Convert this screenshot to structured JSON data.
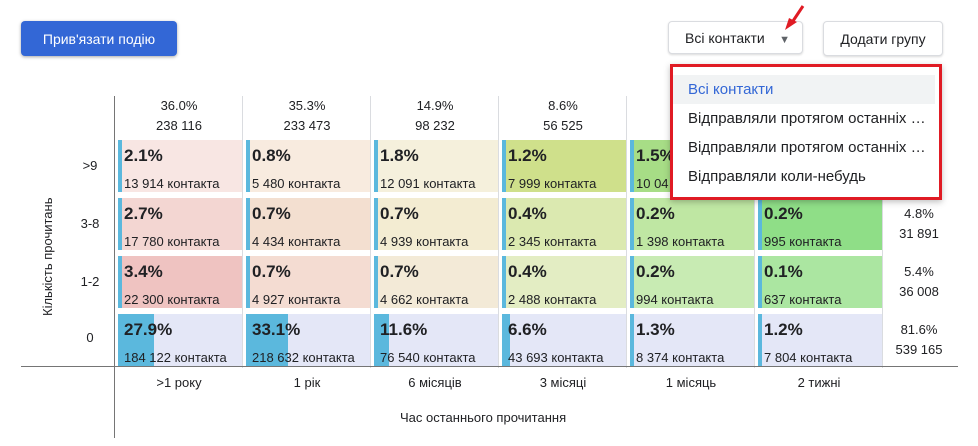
{
  "toolbar": {
    "bind_event_label": "Прив'язати подію",
    "contacts_dropdown_label": "Всі контакти",
    "add_group_label": "Додати групу"
  },
  "dropdown_menu": {
    "items": [
      "Всі контакти",
      "Відправляли протягом останніх …",
      "Відправляли протягом останніх …",
      "Відправляли коли-небудь"
    ],
    "selected_index": 0
  },
  "grid": {
    "y_axis_title": "Кількість прочитань",
    "x_axis_title": "Час останнього прочитання",
    "rows": [
      ">9",
      "3-8",
      "1-2",
      "0"
    ],
    "columns": [
      ">1 року",
      "1 рік",
      "6 місяців",
      "3 місяці",
      "1 місяць",
      "2 тижні"
    ],
    "column_totals": [
      {
        "pct": "36.0%",
        "count": "238 116"
      },
      {
        "pct": "35.3%",
        "count": "233 473"
      },
      {
        "pct": "14.9%",
        "count": "98 232"
      },
      {
        "pct": "8.6%",
        "count": "56 525"
      },
      {
        "pct": "",
        "count": ""
      },
      {
        "pct": "",
        "count": ""
      }
    ],
    "row_totals": [
      {
        "pct": "",
        "count": ""
      },
      {
        "pct": "4.8%",
        "count": "31 891"
      },
      {
        "pct": "5.4%",
        "count": "36 008"
      },
      {
        "pct": "81.6%",
        "count": "539 165"
      }
    ],
    "cells": [
      [
        {
          "pct": "2.1%",
          "count": "13 914 контакта",
          "fill": 0.021,
          "color": "#f8e6e3"
        },
        {
          "pct": "0.8%",
          "count": "5 480 контакта",
          "fill": 0.008,
          "color": "#f8ebdf"
        },
        {
          "pct": "1.8%",
          "count": "12 091 контакта",
          "fill": 0.018,
          "color": "#f5f0dc"
        },
        {
          "pct": "1.2%",
          "count": "7 999 контакта",
          "fill": 0.012,
          "color": "#cfe08b"
        },
        {
          "pct": "1.5%",
          "count": "10 04",
          "fill": 0.015,
          "color": "#a7dd86"
        },
        {
          "pct": "",
          "count": "",
          "fill": 0,
          "color": "#ffffff"
        }
      ],
      [
        {
          "pct": "2.7%",
          "count": "17 780 контакта",
          "fill": 0.027,
          "color": "#f3d6d2"
        },
        {
          "pct": "0.7%",
          "count": "4 434 контакта",
          "fill": 0.007,
          "color": "#f3dfd0"
        },
        {
          "pct": "0.7%",
          "count": "4 939 контакта",
          "fill": 0.007,
          "color": "#f3ecd2"
        },
        {
          "pct": "0.4%",
          "count": "2 345 контакта",
          "fill": 0.004,
          "color": "#dbe9b0"
        },
        {
          "pct": "0.2%",
          "count": "1 398 контакта",
          "fill": 0.002,
          "color": "#bfe7a3"
        },
        {
          "pct": "0.2%",
          "count": "995 контакта",
          "fill": 0.002,
          "color": "#8fde87"
        }
      ],
      [
        {
          "pct": "3.4%",
          "count": "22 300 контакта",
          "fill": 0.034,
          "color": "#efc3c1"
        },
        {
          "pct": "0.7%",
          "count": "4 927 контакта",
          "fill": 0.007,
          "color": "#f4dcd2"
        },
        {
          "pct": "0.7%",
          "count": "4 662 контакта",
          "fill": 0.007,
          "color": "#f3ead7"
        },
        {
          "pct": "0.4%",
          "count": "2 488 контакта",
          "fill": 0.004,
          "color": "#e3edc3"
        },
        {
          "pct": "0.2%",
          "count": "994 контакта",
          "fill": 0.002,
          "color": "#c8ebb3"
        },
        {
          "pct": "0.1%",
          "count": "637 контакта",
          "fill": 0.001,
          "color": "#abe6a1"
        }
      ],
      [
        {
          "pct": "27.9%",
          "count": "184 122 контакта",
          "fill": 0.279,
          "color": "#e4e7f7"
        },
        {
          "pct": "33.1%",
          "count": "218 632 контакта",
          "fill": 0.331,
          "color": "#e4e7f7"
        },
        {
          "pct": "11.6%",
          "count": "76 540 контакта",
          "fill": 0.116,
          "color": "#e4e7f7"
        },
        {
          "pct": "6.6%",
          "count": "43 693 контакта",
          "fill": 0.066,
          "color": "#e4e7f7"
        },
        {
          "pct": "1.3%",
          "count": "8 374 контакта",
          "fill": 0.013,
          "color": "#e4e7f7"
        },
        {
          "pct": "1.2%",
          "count": "7 804 контакта",
          "fill": 0.012,
          "color": "#e4e7f7"
        }
      ]
    ],
    "bar_color": "#5bb8dd",
    "accent_color": "#3367d6",
    "highlight_color": "#e01b24"
  }
}
